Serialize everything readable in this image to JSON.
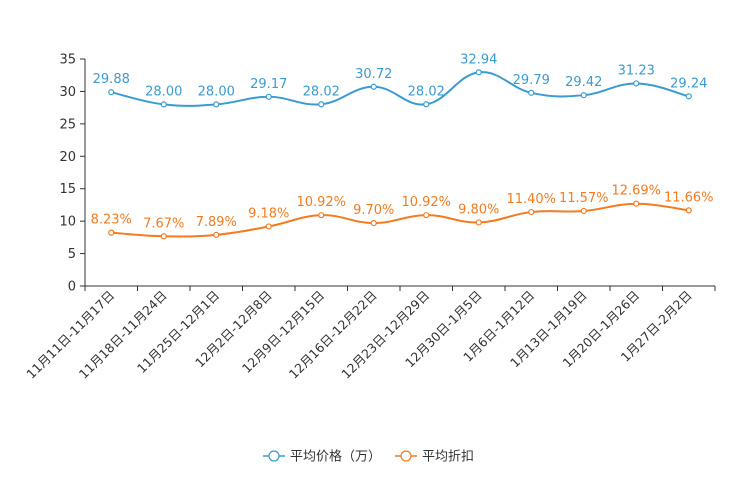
{
  "chart_data": {
    "type": "line",
    "categories": [
      "11月11日-11月17日",
      "11月18日-11月24日",
      "11月25日-12月1日",
      "12月2日-12月8日",
      "12月9日-12月15日",
      "12月16日-12月22日",
      "12月23日-12月29日",
      "12月30日-1月5日",
      "1月6日-1月12日",
      "1月13日-1月19日",
      "1月20日-1月26日",
      "1月27日-2月2日"
    ],
    "series": [
      {
        "name": "平均价格（万）",
        "color": "#3a9bd1",
        "values": [
          29.88,
          28.0,
          28.0,
          29.17,
          28.02,
          30.72,
          28.02,
          32.94,
          29.79,
          29.42,
          31.23,
          29.24
        ],
        "labels": [
          "29.88",
          "28.00",
          "28.00",
          "29.17",
          "28.02",
          "30.72",
          "28.02",
          "32.94",
          "29.79",
          "29.42",
          "31.23",
          "29.24"
        ]
      },
      {
        "name": "平均折扣",
        "color": "#f47b20",
        "values": [
          8.23,
          7.67,
          7.89,
          9.18,
          10.92,
          9.7,
          10.92,
          9.8,
          11.4,
          11.57,
          12.69,
          11.66
        ],
        "labels": [
          "8.23%",
          "7.67%",
          "7.89%",
          "9.18%",
          "10.92%",
          "9.70%",
          "10.92%",
          "9.80%",
          "11.40%",
          "11.57%",
          "12.69%",
          "11.66%"
        ]
      }
    ],
    "yticks": [
      0,
      5,
      10,
      15,
      20,
      25,
      30,
      35
    ],
    "ylim": [
      0,
      35
    ],
    "legend": "bottom-center",
    "grid": false
  }
}
